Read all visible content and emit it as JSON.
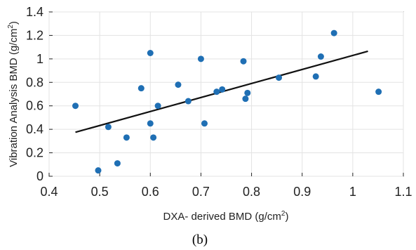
{
  "chart_data": {
    "type": "scatter",
    "title": "",
    "caption": "(b)",
    "xlabel": "DXA- derived BMD (g/cm",
    "xlabel_sup": "2",
    "xlabel_end": ")",
    "ylabel": "Vibration Analysis BMD (g/cm",
    "ylabel_sup": "2",
    "ylabel_end": ")",
    "xlim": [
      0.4,
      1.1
    ],
    "ylim": [
      0,
      1.4
    ],
    "xticks": [
      "0.4",
      "0.5",
      "0.6",
      "0.7",
      "0.8",
      "0.9",
      "1",
      "1.1"
    ],
    "yticks": [
      "0",
      "0.2",
      "0.4",
      "0.6",
      "0.8",
      "1",
      "1.2",
      "1.4"
    ],
    "grid": true,
    "point_color": "#1f6fb4",
    "line_color": "#111111",
    "points": [
      {
        "x": 0.452,
        "y": 0.6
      },
      {
        "x": 0.497,
        "y": 0.05
      },
      {
        "x": 0.517,
        "y": 0.42
      },
      {
        "x": 0.535,
        "y": 0.11
      },
      {
        "x": 0.553,
        "y": 0.33
      },
      {
        "x": 0.582,
        "y": 0.75
      },
      {
        "x": 0.6,
        "y": 0.45
      },
      {
        "x": 0.6,
        "y": 1.05
      },
      {
        "x": 0.606,
        "y": 0.33
      },
      {
        "x": 0.615,
        "y": 0.6
      },
      {
        "x": 0.655,
        "y": 0.78
      },
      {
        "x": 0.675,
        "y": 0.64
      },
      {
        "x": 0.7,
        "y": 1.0
      },
      {
        "x": 0.707,
        "y": 0.45
      },
      {
        "x": 0.731,
        "y": 0.72
      },
      {
        "x": 0.742,
        "y": 0.74
      },
      {
        "x": 0.784,
        "y": 0.98
      },
      {
        "x": 0.788,
        "y": 0.66
      },
      {
        "x": 0.792,
        "y": 0.71
      },
      {
        "x": 0.854,
        "y": 0.84
      },
      {
        "x": 0.927,
        "y": 0.85
      },
      {
        "x": 0.937,
        "y": 1.02
      },
      {
        "x": 0.963,
        "y": 1.22
      },
      {
        "x": 1.051,
        "y": 0.72
      }
    ],
    "fit_line": {
      "x": [
        0.452,
        1.03
      ],
      "y": [
        0.375,
        1.065
      ]
    }
  }
}
